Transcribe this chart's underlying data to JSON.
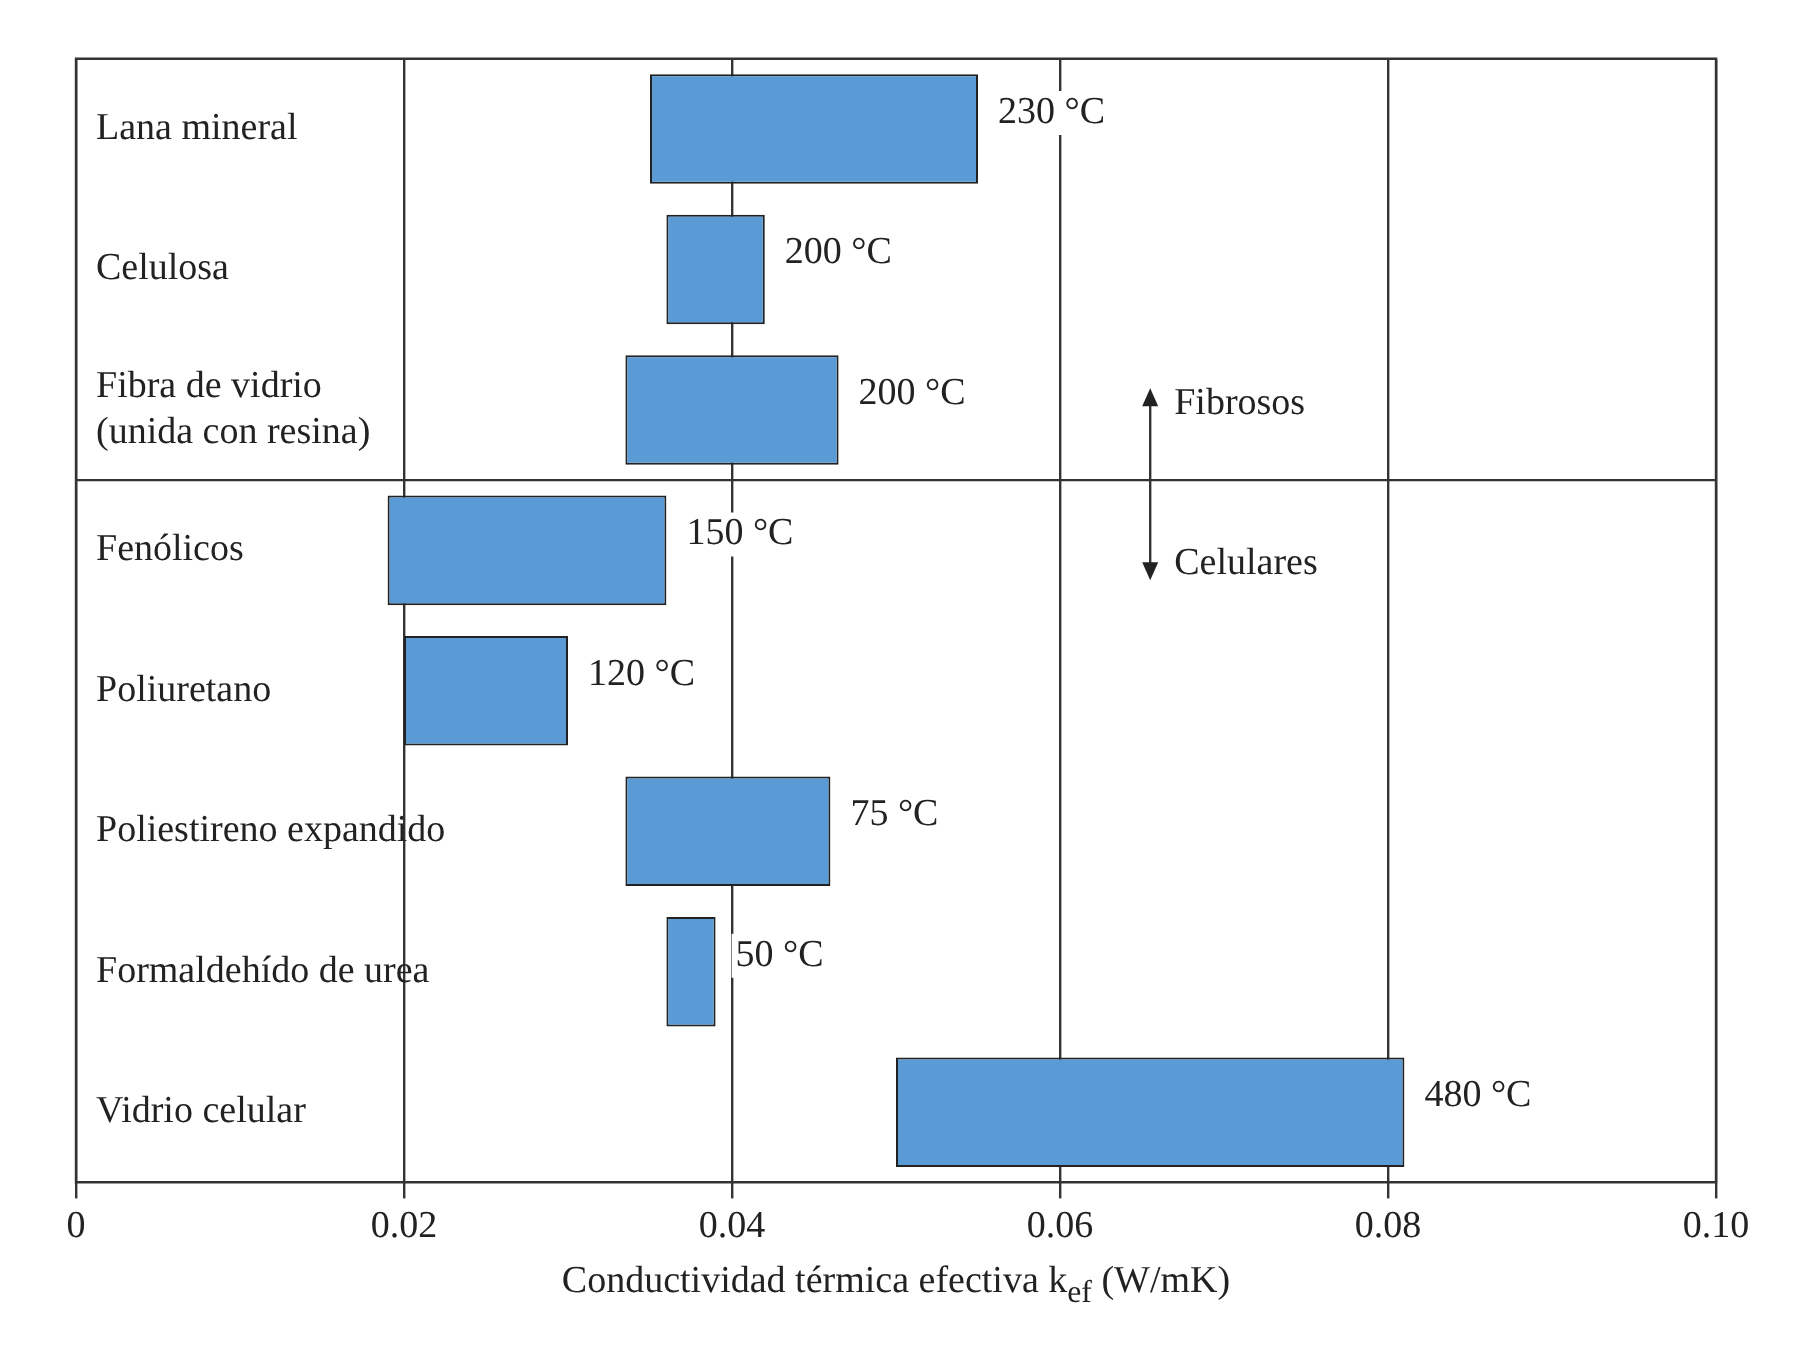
{
  "chart_data": {
    "type": "bar",
    "orientation": "horizontal",
    "categories": [
      "Lana mineral",
      "Celulosa",
      "Fibra de vidrio\n(unida con resina)",
      "Fenólicos",
      "Poliuretano",
      "Poliestireno expandido",
      "Formaldehído de urea",
      "Vidrio celular"
    ],
    "base": [
      0.035,
      0.036,
      0.0335,
      0.019,
      0.02,
      0.0335,
      0.036,
      0.05
    ],
    "values": [
      0.02,
      0.006,
      0.013,
      0.017,
      0.01,
      0.0125,
      0.003,
      0.031
    ],
    "color": "#5b9bd5",
    "xlabel": "Conductividad térmica efectiva k$_{ef}$ (W/mK)",
    "xlim": [
      0,
      0.1
    ],
    "xticks": [
      0,
      0.02,
      0.04,
      0.06,
      0.08,
      {
        "value": 0.1,
        "label": "0.10"
      }
    ],
    "grid": "x",
    "annotations": [
      {
        "text": "230 °C",
        "x": 0.055,
        "y": "Lana mineral"
      },
      {
        "text": "200 °C",
        "x": 0.042,
        "y": "Celulosa"
      },
      {
        "text": "200 °C",
        "x": 0.0465,
        "y": "Fibra de vidrio\n(unida con resina)"
      },
      {
        "text": "150 °C",
        "x": 0.036,
        "y": "Fenólicos"
      },
      {
        "text": "120 °C",
        "x": 0.03,
        "y": "Poliuretano"
      },
      {
        "text": "75 °C",
        "x": 0.046,
        "y": "Poliestireno expandido"
      },
      {
        "text": "50 °C",
        "x": 0.039,
        "y": "Formaldehído de urea"
      },
      {
        "text": "480 °C",
        "x": 0.081,
        "y": "Vidrio celular"
      },
      "Fibrosos",
      "Celulares"
    ]
  }
}
